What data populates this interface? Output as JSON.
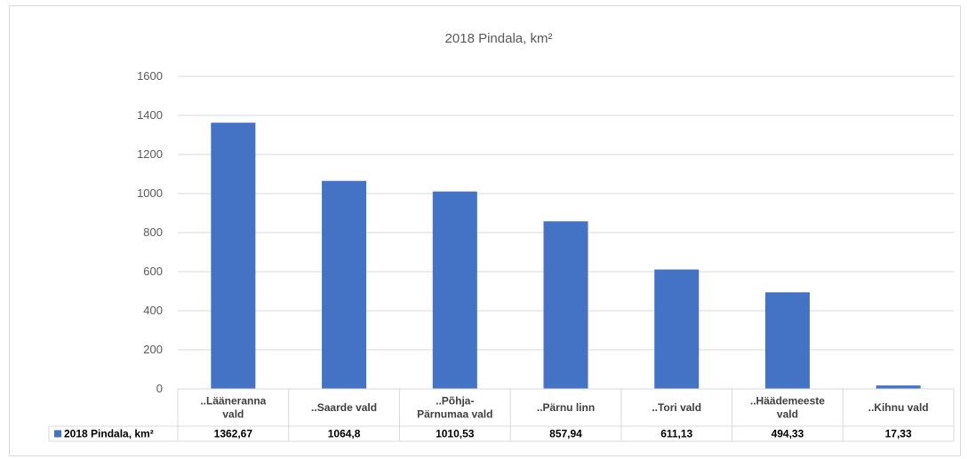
{
  "chart_data": {
    "type": "bar",
    "title": "2018 Pindala, km²",
    "categories": [
      [
        "..Lääneranna",
        "vald"
      ],
      [
        "..Saarde vald"
      ],
      [
        "..Põhja-",
        "Pärnumaa vald"
      ],
      [
        "..Pärnu linn"
      ],
      [
        "..Tori vald"
      ],
      [
        "..Häädemeeste",
        "vald"
      ],
      [
        "..Kihnu vald"
      ]
    ],
    "series": [
      {
        "name": "2018 Pindala, km²",
        "values": [
          1362.67,
          1064.8,
          1010.53,
          857.94,
          611.13,
          494.33,
          17.33
        ],
        "value_labels": [
          "1362,67",
          "1064,8",
          "1010,53",
          "857,94",
          "611,13",
          "494,33",
          "17,33"
        ]
      }
    ],
    "ylim": [
      0,
      1600
    ],
    "yticks": [
      0,
      200,
      400,
      600,
      800,
      1000,
      1200,
      1400,
      1600
    ],
    "grid": true,
    "legend": "data-table",
    "colors": {
      "bar": "#4472c4",
      "grid": "#d9d9d9",
      "text": "#595959"
    }
  }
}
